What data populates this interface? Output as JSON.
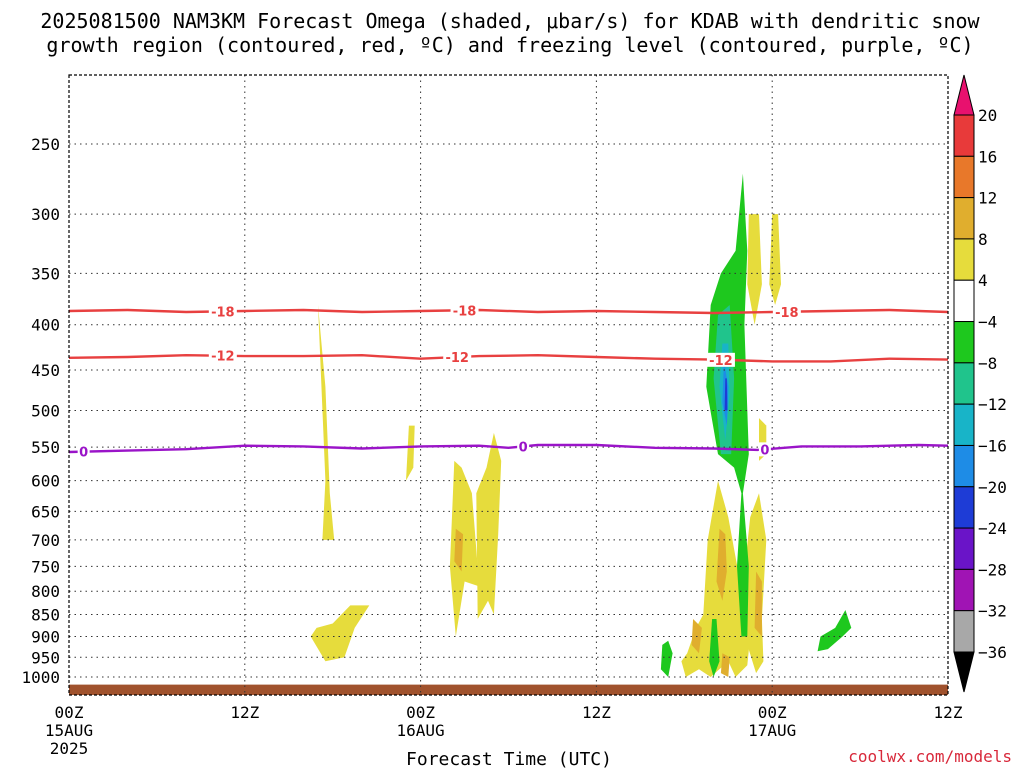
{
  "title": {
    "line1": "2025081500 NAM3KM Forecast Omega (shaded, μbar/s) for KDAB with dendritic snow",
    "line2": "growth region (contoured, red, ºC) and freezing level (contoured, purple, ºC)"
  },
  "credit": "coolwx.com/models",
  "chart_data": {
    "type": "heatmap",
    "xlabel": "Forecast Time (UTC)",
    "x_range_hours": [
      0,
      60
    ],
    "x_ticks": [
      {
        "h": 0,
        "label": "00Z",
        "sub1": "15AUG",
        "sub2": "2025"
      },
      {
        "h": 12,
        "label": "12Z",
        "sub1": "",
        "sub2": ""
      },
      {
        "h": 24,
        "label": "00Z",
        "sub1": "16AUG",
        "sub2": ""
      },
      {
        "h": 36,
        "label": "12Z",
        "sub1": "",
        "sub2": ""
      },
      {
        "h": 48,
        "label": "00Z",
        "sub1": "17AUG",
        "sub2": ""
      },
      {
        "h": 60,
        "label": "12Z",
        "sub1": "",
        "sub2": ""
      }
    ],
    "ylabel": "",
    "y_scale": "log",
    "y_range_hPa": [
      1050,
      190
    ],
    "y_ticks": [
      250,
      300,
      350,
      400,
      450,
      500,
      550,
      600,
      650,
      700,
      750,
      800,
      850,
      900,
      950,
      1000
    ],
    "grid": "dotted",
    "colorbar": {
      "labels": [
        "20",
        "16",
        "12",
        "8",
        "4",
        "−4",
        "−8",
        "−12",
        "−16",
        "−20",
        "−24",
        "−28",
        "−32",
        "−36"
      ],
      "colors": [
        "#e8116e",
        "#e83a3a",
        "#e8782a",
        "#e0ae2e",
        "#e6dc3c",
        "#ffffff",
        "#1ec81e",
        "#20c48c",
        "#18b4c8",
        "#1e8ce6",
        "#1e3cd6",
        "#6a14c8",
        "#a014b4",
        "#a8a8a8",
        "#000000"
      ]
    },
    "contours": [
      {
        "level": "-18",
        "color": "#e84040",
        "label": "-18",
        "points": [
          [
            0,
            386
          ],
          [
            4,
            385
          ],
          [
            8,
            387
          ],
          [
            12,
            386
          ],
          [
            16,
            385
          ],
          [
            20,
            387
          ],
          [
            24,
            386
          ],
          [
            28,
            385
          ],
          [
            32,
            387
          ],
          [
            36,
            386
          ],
          [
            40,
            387
          ],
          [
            44,
            388
          ],
          [
            48,
            387
          ],
          [
            52,
            386
          ],
          [
            56,
            385
          ],
          [
            60,
            387
          ]
        ],
        "label_h": [
          10.5,
          27,
          49
        ]
      },
      {
        "level": "-12",
        "color": "#e84040",
        "label": "-12",
        "points": [
          [
            0,
            436
          ],
          [
            4,
            435
          ],
          [
            8,
            433
          ],
          [
            12,
            434
          ],
          [
            16,
            434
          ],
          [
            20,
            433
          ],
          [
            24,
            437
          ],
          [
            28,
            434
          ],
          [
            32,
            433
          ],
          [
            36,
            435
          ],
          [
            40,
            437
          ],
          [
            44,
            438
          ],
          [
            48,
            440
          ],
          [
            52,
            440
          ],
          [
            56,
            437
          ],
          [
            60,
            438
          ]
        ],
        "label_h": [
          10.5,
          26.5,
          44.5
        ]
      },
      {
        "level": "0",
        "color": "#9a14c8",
        "label": "0",
        "points": [
          [
            0,
            557
          ],
          [
            4,
            555
          ],
          [
            8,
            553
          ],
          [
            12,
            548
          ],
          [
            16,
            549
          ],
          [
            20,
            552
          ],
          [
            24,
            549
          ],
          [
            28,
            548
          ],
          [
            30,
            551
          ],
          [
            32,
            547
          ],
          [
            36,
            547
          ],
          [
            40,
            551
          ],
          [
            44,
            552
          ],
          [
            47,
            554
          ],
          [
            50,
            549
          ],
          [
            54,
            549
          ],
          [
            58,
            547
          ],
          [
            60,
            548
          ]
        ],
        "label_h": [
          1,
          31,
          47.5
        ]
      }
    ],
    "omega_regions": [
      {
        "value": "4 to 8",
        "color": "#e6dc3c",
        "pts": [
          [
            17,
            380
          ],
          [
            17.5,
            600
          ],
          [
            17.3,
            700
          ],
          [
            18.1,
            700
          ],
          [
            17.8,
            620
          ],
          [
            17.5,
            470
          ]
        ]
      },
      {
        "value": "4 to 8",
        "color": "#e6dc3c",
        "pts": [
          [
            23.2,
            520
          ],
          [
            23.0,
            600
          ],
          [
            23.5,
            580
          ],
          [
            23.6,
            520
          ]
        ]
      },
      {
        "value": "4 to 8",
        "color": "#e6dc3c",
        "pts": [
          [
            26.3,
            570
          ],
          [
            26.0,
            750
          ],
          [
            26.4,
            900
          ],
          [
            27.0,
            780
          ],
          [
            28.0,
            790
          ],
          [
            27.5,
            620
          ],
          [
            26.8,
            580
          ]
        ]
      },
      {
        "value": "4 to 8",
        "color": "#e6dc3c",
        "pts": [
          [
            27.8,
            620
          ],
          [
            27.9,
            860
          ],
          [
            28.6,
            820
          ],
          [
            29.0,
            850
          ],
          [
            29.3,
            690
          ],
          [
            29.5,
            570
          ],
          [
            29.0,
            530
          ],
          [
            28.5,
            580
          ]
        ]
      },
      {
        "value": "4 to 8",
        "color": "#e6dc3c",
        "pts": [
          [
            16.9,
            880
          ],
          [
            16.5,
            900
          ],
          [
            17.5,
            960
          ],
          [
            18.8,
            950
          ],
          [
            19.5,
            880
          ],
          [
            20.5,
            830
          ],
          [
            19.2,
            830
          ],
          [
            18.0,
            870
          ]
        ]
      },
      {
        "value": "4 to 8",
        "color": "#e6dc3c",
        "pts": [
          [
            42.2,
            940
          ],
          [
            41.8,
            960
          ],
          [
            42.1,
            1000
          ],
          [
            43.0,
            980
          ],
          [
            43.8,
            1000
          ],
          [
            45.0,
            960
          ],
          [
            45.5,
            1000
          ],
          [
            46.3,
            970
          ],
          [
            46.5,
            900
          ],
          [
            45.8,
            780
          ],
          [
            45.0,
            660
          ],
          [
            44.3,
            600
          ],
          [
            43.6,
            700
          ],
          [
            43.3,
            850
          ],
          [
            42.8,
            880
          ]
        ]
      },
      {
        "value": "4 to 8",
        "color": "#e6dc3c",
        "pts": [
          [
            46.5,
            660
          ],
          [
            46.1,
            760
          ],
          [
            46.3,
            920
          ],
          [
            46.9,
            990
          ],
          [
            47.4,
            960
          ],
          [
            47.3,
            860
          ],
          [
            47.6,
            700
          ],
          [
            47.1,
            620
          ]
        ]
      },
      {
        "value": "4 to 8",
        "color": "#e6dc3c",
        "pts": [
          [
            46.4,
            300
          ],
          [
            46.3,
            360
          ],
          [
            46.8,
            400
          ],
          [
            47.3,
            360
          ],
          [
            47.1,
            300
          ]
        ]
      },
      {
        "value": "4 to 8",
        "color": "#e6dc3c",
        "pts": [
          [
            48.0,
            300
          ],
          [
            47.8,
            360
          ],
          [
            48.2,
            380
          ],
          [
            48.6,
            360
          ],
          [
            48.4,
            300
          ]
        ]
      },
      {
        "value": "4 to 8",
        "color": "#e6dc3c",
        "pts": [
          [
            47.1,
            510
          ],
          [
            47.1,
            570
          ],
          [
            47.6,
            560
          ],
          [
            47.6,
            520
          ]
        ]
      },
      {
        "value": "8 to 12",
        "color": "#e0ae2e",
        "pts": [
          [
            26.4,
            680
          ],
          [
            26.3,
            740
          ],
          [
            26.8,
            760
          ],
          [
            26.9,
            690
          ]
        ]
      },
      {
        "value": "8 to 12",
        "color": "#e0ae2e",
        "pts": [
          [
            42.6,
            860
          ],
          [
            42.5,
            920
          ],
          [
            43.0,
            940
          ],
          [
            43.2,
            880
          ]
        ]
      },
      {
        "value": "8 to 12",
        "color": "#e0ae2e",
        "pts": [
          [
            44.4,
            680
          ],
          [
            44.2,
            780
          ],
          [
            44.6,
            820
          ],
          [
            44.9,
            760
          ],
          [
            44.8,
            690
          ]
        ]
      },
      {
        "value": "8 to 12",
        "color": "#e0ae2e",
        "pts": [
          [
            46.9,
            760
          ],
          [
            46.8,
            880
          ],
          [
            47.3,
            900
          ],
          [
            47.3,
            780
          ]
        ]
      },
      {
        "value": "8 to 12",
        "color": "#e0ae2e",
        "pts": [
          [
            44.6,
            940
          ],
          [
            44.5,
            990
          ],
          [
            45.0,
            1000
          ],
          [
            45.1,
            950
          ]
        ]
      },
      {
        "value": "−4 to −8",
        "color": "#1ec81e",
        "pts": [
          [
            46.0,
            270
          ],
          [
            45.5,
            330
          ],
          [
            44.5,
            350
          ],
          [
            43.8,
            380
          ],
          [
            43.5,
            470
          ],
          [
            44.3,
            560
          ],
          [
            45.4,
            580
          ],
          [
            45.9,
            620
          ],
          [
            45.6,
            750
          ],
          [
            45.9,
            900
          ],
          [
            46.3,
            900
          ],
          [
            46.4,
            750
          ],
          [
            46.0,
            620
          ],
          [
            46.4,
            560
          ],
          [
            46.1,
            400
          ],
          [
            46.3,
            330
          ]
        ]
      },
      {
        "value": "−4 to −8",
        "color": "#1ec81e",
        "pts": [
          [
            40.5,
            920
          ],
          [
            40.4,
            980
          ],
          [
            40.9,
            1000
          ],
          [
            41.2,
            940
          ],
          [
            40.9,
            910
          ]
        ]
      },
      {
        "value": "−4 to −8",
        "color": "#1ec81e",
        "pts": [
          [
            43.9,
            860
          ],
          [
            43.7,
            960
          ],
          [
            44.0,
            1000
          ],
          [
            44.4,
            960
          ],
          [
            44.2,
            860
          ]
        ]
      },
      {
        "value": "−4 to −8",
        "color": "#1ec81e",
        "pts": [
          [
            51.3,
            900
          ],
          [
            51.1,
            935
          ],
          [
            51.8,
            930
          ],
          [
            52.8,
            900
          ],
          [
            53.4,
            880
          ],
          [
            53.0,
            840
          ],
          [
            52.3,
            880
          ]
        ]
      },
      {
        "value": "−8 to −12",
        "color": "#20c48c",
        "pts": [
          [
            44.3,
            390
          ],
          [
            44.0,
            460
          ],
          [
            44.5,
            560
          ],
          [
            45.2,
            560
          ],
          [
            45.4,
            460
          ],
          [
            45.1,
            380
          ]
        ]
      },
      {
        "value": "−12 to −16",
        "color": "#18b4c8",
        "pts": [
          [
            44.6,
            420
          ],
          [
            44.4,
            470
          ],
          [
            44.8,
            540
          ],
          [
            45.1,
            480
          ],
          [
            45.0,
            420
          ]
        ]
      },
      {
        "value": "−16 to −20",
        "color": "#1e8ce6",
        "pts": [
          [
            44.7,
            440
          ],
          [
            44.6,
            490
          ],
          [
            44.9,
            520
          ],
          [
            45.0,
            470
          ]
        ]
      },
      {
        "value": "−20 to −24",
        "color": "#1e3cd6",
        "pts": [
          [
            44.8,
            460
          ],
          [
            44.75,
            500
          ],
          [
            44.95,
            500
          ],
          [
            44.9,
            460
          ]
        ]
      }
    ],
    "ground": {
      "from_hPa": 1020,
      "color": "#a0522d"
    }
  }
}
